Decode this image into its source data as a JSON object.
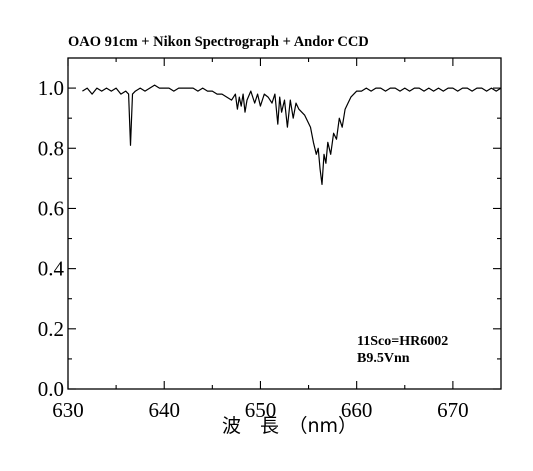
{
  "chart_data": {
    "type": "line",
    "title": "OAO 91cm + Nikon Spectrograph + Andor CCD",
    "xlabel": "波　長　（nm）",
    "ylabel": "",
    "xlim": [
      630,
      675
    ],
    "ylim": [
      0.0,
      1.1
    ],
    "xticks": [
      630,
      640,
      650,
      660,
      670
    ],
    "yticks": [
      0.0,
      0.2,
      0.4,
      0.6,
      0.8,
      1.0
    ],
    "xtick_labels": [
      "630",
      "640",
      "650",
      "660",
      "670"
    ],
    "ytick_labels": [
      "0.0",
      "0.2",
      "0.4",
      "0.6",
      "0.8",
      "1.0"
    ],
    "annotations": [
      "11Sco=HR6002",
      "B9.5Vnn"
    ],
    "series": [
      {
        "color": "#000000",
        "x": [
          631.5,
          632.0,
          632.5,
          633.0,
          633.5,
          634.0,
          634.5,
          635.0,
          635.5,
          636.0,
          636.3,
          636.5,
          636.7,
          637.0,
          637.5,
          638.0,
          638.5,
          639.0,
          639.5,
          640.0,
          640.5,
          641.0,
          641.5,
          642.0,
          642.5,
          643.0,
          643.5,
          644.0,
          644.5,
          645.0,
          645.5,
          646.0,
          646.5,
          647.0,
          647.4,
          647.6,
          647.8,
          648.0,
          648.2,
          648.4,
          648.6,
          649.0,
          649.4,
          649.7,
          650.0,
          650.4,
          650.8,
          651.2,
          651.5,
          651.8,
          652.0,
          652.2,
          652.5,
          652.8,
          653.1,
          653.4,
          653.7,
          654.0,
          654.3,
          654.6,
          654.9,
          655.2,
          655.5,
          655.8,
          656.0,
          656.2,
          656.4,
          656.6,
          656.8,
          657.0,
          657.3,
          657.6,
          657.9,
          658.2,
          658.5,
          658.8,
          659.1,
          659.4,
          659.7,
          660.0,
          660.5,
          661.0,
          661.5,
          662.0,
          662.5,
          663.0,
          663.5,
          664.0,
          664.5,
          665.0,
          665.5,
          666.0,
          666.5,
          667.0,
          667.5,
          668.0,
          668.5,
          669.0,
          669.5,
          670.0,
          670.5,
          671.0,
          671.5,
          672.0,
          672.5,
          673.0,
          673.5,
          674.0,
          674.5,
          675.0
        ],
        "y": [
          0.99,
          1.0,
          0.98,
          1.0,
          0.99,
          1.0,
          0.99,
          1.0,
          0.98,
          0.99,
          0.98,
          0.81,
          0.98,
          0.99,
          1.0,
          0.99,
          1.0,
          1.01,
          1.0,
          1.0,
          1.0,
          0.99,
          1.0,
          1.0,
          1.0,
          1.0,
          0.99,
          1.0,
          0.99,
          0.99,
          0.98,
          0.98,
          0.97,
          0.96,
          0.98,
          0.93,
          0.97,
          0.94,
          0.98,
          0.92,
          0.96,
          0.99,
          0.95,
          0.98,
          0.94,
          0.98,
          0.97,
          0.95,
          0.98,
          0.88,
          0.97,
          0.92,
          0.96,
          0.87,
          0.96,
          0.9,
          0.95,
          0.93,
          0.92,
          0.91,
          0.89,
          0.87,
          0.82,
          0.78,
          0.8,
          0.73,
          0.68,
          0.78,
          0.75,
          0.82,
          0.78,
          0.85,
          0.83,
          0.9,
          0.87,
          0.93,
          0.95,
          0.97,
          0.98,
          0.99,
          0.99,
          1.0,
          0.99,
          1.0,
          1.0,
          0.99,
          1.0,
          1.0,
          0.99,
          1.0,
          0.99,
          1.0,
          1.0,
          0.99,
          1.0,
          0.99,
          1.0,
          0.99,
          1.0,
          1.0,
          0.99,
          1.0,
          1.0,
          0.99,
          1.0,
          1.0,
          0.99,
          1.0,
          0.99,
          1.0
        ]
      }
    ]
  }
}
